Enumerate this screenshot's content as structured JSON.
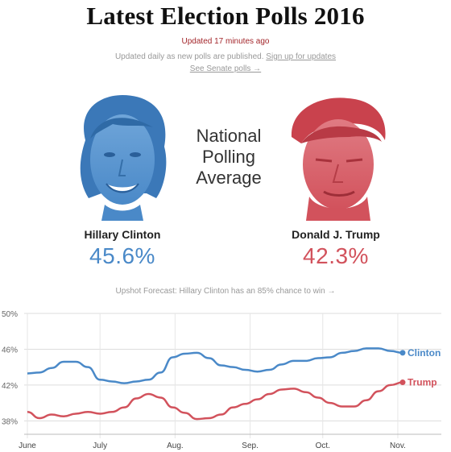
{
  "header": {
    "title": "Latest Election Polls 2016",
    "updated": "Updated 17 minutes ago",
    "subline_text": "Updated daily as new polls are published.",
    "signup_link": "Sign up for updates",
    "senate_link": "See Senate polls →"
  },
  "center_label": {
    "line1": "National",
    "line2": "Polling",
    "line3": "Average"
  },
  "candidates": {
    "clinton": {
      "name": "Hillary Clinton",
      "pct": "45.6%",
      "color": "#4a89c8"
    },
    "trump": {
      "name": "Donald J. Trump",
      "pct": "42.3%",
      "color": "#d2525c"
    }
  },
  "forecast_text": "Upshot Forecast: Hillary Clinton has an 85% chance to win →",
  "chart_data": {
    "type": "line",
    "x": [
      0,
      5,
      10,
      15,
      20,
      25,
      30,
      35,
      40,
      45,
      50,
      55,
      60,
      65,
      70,
      75,
      80,
      85,
      90,
      95,
      100,
      105,
      110,
      115,
      120,
      125,
      130,
      135,
      140,
      145,
      150,
      155
    ],
    "xticks": [
      {
        "label": "June",
        "pos": 0
      },
      {
        "label": "July",
        "pos": 30
      },
      {
        "label": "Aug.",
        "pos": 61
      },
      {
        "label": "Sep.",
        "pos": 92
      },
      {
        "label": "Oct.",
        "pos": 122
      },
      {
        "label": "Nov.",
        "pos": 153
      }
    ],
    "yticks": [
      "50%",
      "46%",
      "42%",
      "38%"
    ],
    "ytick_values": [
      50,
      46,
      42,
      38
    ],
    "ylim": [
      36.5,
      50
    ],
    "xlim": [
      0,
      159
    ],
    "series": [
      {
        "name": "Clinton",
        "color": "#4a89c8",
        "values": [
          43.3,
          43.4,
          43.9,
          44.6,
          44.6,
          44.0,
          42.6,
          42.4,
          42.2,
          42.4,
          42.6,
          43.4,
          45.1,
          45.5,
          45.6,
          45.0,
          44.2,
          44.0,
          43.7,
          43.5,
          43.7,
          44.3,
          44.7,
          44.7,
          45.0,
          45.1,
          45.6,
          45.8,
          46.1,
          46.1,
          45.8,
          45.6
        ]
      },
      {
        "name": "Trump",
        "color": "#d2525c",
        "values": [
          39.0,
          38.3,
          38.7,
          38.5,
          38.8,
          39.0,
          38.8,
          39.0,
          39.5,
          40.5,
          41.0,
          40.6,
          39.5,
          38.9,
          38.2,
          38.3,
          38.7,
          39.5,
          39.9,
          40.4,
          41.0,
          41.5,
          41.6,
          41.2,
          40.6,
          40.0,
          39.6,
          39.6,
          40.3,
          41.3,
          42.0,
          42.3
        ]
      }
    ]
  }
}
